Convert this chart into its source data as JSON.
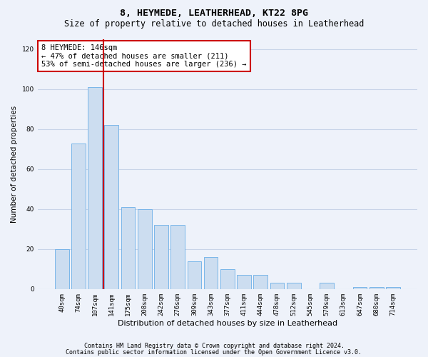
{
  "title1": "8, HEYMEDE, LEATHERHEAD, KT22 8PG",
  "title2": "Size of property relative to detached houses in Leatherhead",
  "xlabel": "Distribution of detached houses by size in Leatherhead",
  "ylabel": "Number of detached properties",
  "categories": [
    "40sqm",
    "74sqm",
    "107sqm",
    "141sqm",
    "175sqm",
    "208sqm",
    "242sqm",
    "276sqm",
    "309sqm",
    "343sqm",
    "377sqm",
    "411sqm",
    "444sqm",
    "478sqm",
    "512sqm",
    "545sqm",
    "579sqm",
    "613sqm",
    "647sqm",
    "680sqm",
    "714sqm"
  ],
  "values": [
    20,
    73,
    101,
    82,
    41,
    40,
    32,
    32,
    14,
    16,
    10,
    7,
    7,
    3,
    3,
    0,
    3,
    0,
    1,
    1,
    1
  ],
  "bar_color": "#ccddf0",
  "bar_edge_color": "#6aaee8",
  "vline_x": 3.0,
  "vline_color": "#cc0000",
  "annotation_text": "8 HEYMEDE: 146sqm\n← 47% of detached houses are smaller (211)\n53% of semi-detached houses are larger (236) →",
  "annotation_box_color": "#ffffff",
  "annotation_box_edge": "#cc0000",
  "ylim": [
    0,
    125
  ],
  "yticks": [
    0,
    20,
    40,
    60,
    80,
    100,
    120
  ],
  "grid_color": "#c8d4e8",
  "background_color": "#eef2fa",
  "footer1": "Contains HM Land Registry data © Crown copyright and database right 2024.",
  "footer2": "Contains public sector information licensed under the Open Government Licence v3.0.",
  "title1_fontsize": 9.5,
  "title2_fontsize": 8.5,
  "annotation_fontsize": 7.5,
  "tick_fontsize": 6.5,
  "ylabel_fontsize": 7.5,
  "xlabel_fontsize": 8.0,
  "footer_fontsize": 6.0
}
